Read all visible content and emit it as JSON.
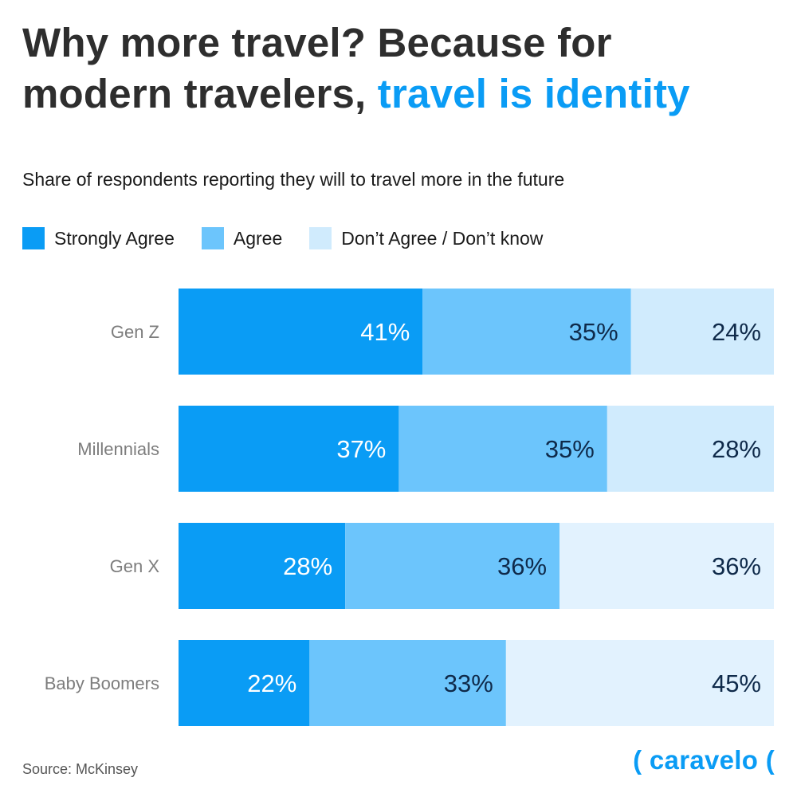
{
  "title": {
    "line1": "Why more travel? Because for",
    "line2": "modern travelers,",
    "highlight": "travel is identity"
  },
  "subtitle": "Share of respondents reporting they will to travel more in the future",
  "legend": [
    {
      "label": "Strongly Agree",
      "color": "#0a9cf5"
    },
    {
      "label": "Agree",
      "color": "#6cc5fc"
    },
    {
      "label": "Don’t Agree / Don’t know",
      "color": "#d0ebfd"
    }
  ],
  "source": "Source: McKinsey",
  "brand": "( caravelo (",
  "chart_data": {
    "type": "bar",
    "orientation": "horizontal",
    "stacked": true,
    "percent_total": 100,
    "categories": [
      "Gen Z",
      "Millennials",
      "Gen X",
      "Baby Boomers"
    ],
    "series": [
      {
        "name": "Strongly Agree",
        "values": [
          41,
          37,
          28,
          22
        ],
        "color": "#0a9cf5",
        "label_color": "#ffffff"
      },
      {
        "name": "Agree",
        "values": [
          35,
          35,
          36,
          33
        ],
        "color": "#6cc5fc",
        "label_color": "#0f2a4a"
      },
      {
        "name": "Don’t Agree / Don’t know",
        "values": [
          24,
          28,
          36,
          45
        ],
        "color_by_row": [
          "#d0ebfd",
          "#d0ebfd",
          "#e2f2fe",
          "#e2f2fe"
        ],
        "label_color": "#0f2a4a"
      }
    ],
    "data_labels": [
      [
        "41%",
        "35%",
        "24%"
      ],
      [
        "37%",
        "35%",
        "28%"
      ],
      [
        "28%",
        "36%",
        "36%"
      ],
      [
        "22%",
        "33%",
        "45%"
      ]
    ]
  }
}
